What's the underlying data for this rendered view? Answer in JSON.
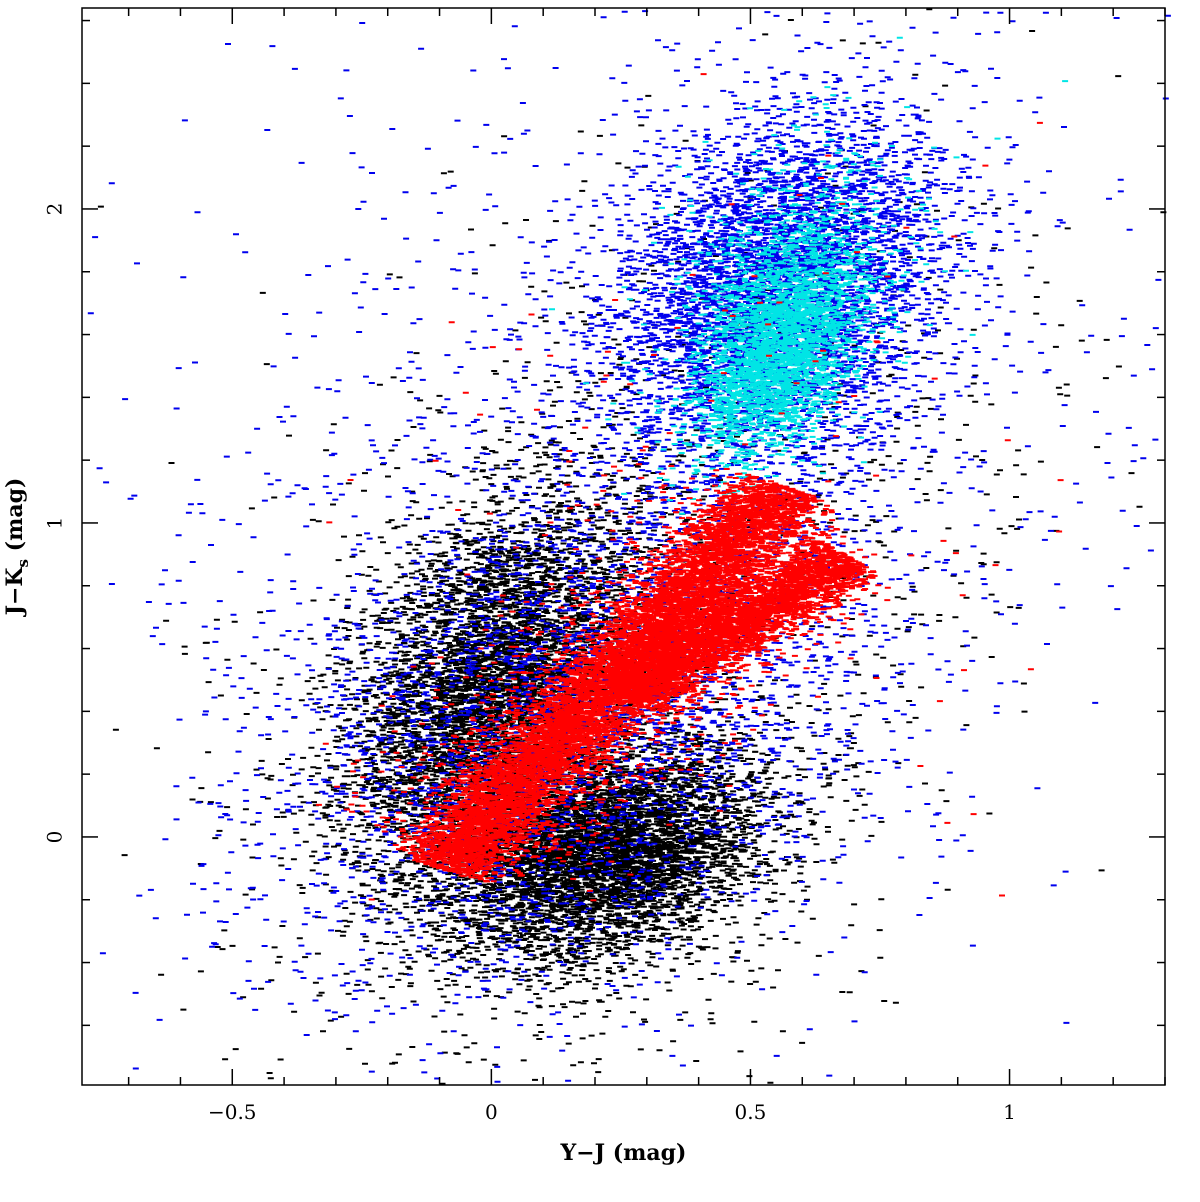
{
  "chart_data": {
    "type": "scatter",
    "title": "",
    "xlabel": "Y−J (mag)",
    "ylabel_main": "J−K",
    "ylabel_sub": "s",
    "ylabel_unit": " (mag)",
    "xlim": [
      -0.79,
      1.3
    ],
    "ylim": [
      -0.79,
      2.64
    ],
    "x_ticks": [
      -0.5,
      0,
      0.5,
      1
    ],
    "x_tick_labels": [
      "−0.5",
      "0",
      "0.5",
      "1"
    ],
    "y_ticks": [
      0,
      1,
      2
    ],
    "y_tick_labels": [
      "0",
      "1",
      "2"
    ],
    "grid": false,
    "legend": "none",
    "series": [
      {
        "color": "#000000",
        "clusters": [
          {
            "cx": 0.0,
            "cy": 0.45,
            "sx": 0.14,
            "sy": 0.3,
            "rho": 0.35,
            "n": 5500
          },
          {
            "cx": 0.22,
            "cy": -0.05,
            "sx": 0.15,
            "sy": 0.17,
            "rho": 0.3,
            "n": 5000
          },
          {
            "cx": 0.2,
            "cy": 0.45,
            "sx": 0.32,
            "sy": 0.62,
            "rho": 0.3,
            "n": 1400
          },
          {
            "cx": 0.45,
            "cy": 1.2,
            "sx": 0.35,
            "sy": 0.6,
            "rho": 0.2,
            "n": 500
          }
        ]
      },
      {
        "color": "#0000ee",
        "clusters": [
          {
            "cx": 0.55,
            "cy": 1.75,
            "sx": 0.16,
            "sy": 0.28,
            "rho": 0.3,
            "n": 5000
          },
          {
            "cx": 0.15,
            "cy": 0.35,
            "sx": 0.28,
            "sy": 0.4,
            "rho": 0.35,
            "n": 3000
          },
          {
            "cx": 0.3,
            "cy": 1.1,
            "sx": 0.45,
            "sy": 0.75,
            "rho": 0.25,
            "n": 1800
          }
        ]
      },
      {
        "color": "#00e5e5",
        "clusters": [
          {
            "cx": 0.55,
            "cy": 1.55,
            "sx": 0.08,
            "sy": 0.18,
            "rho": 0.45,
            "n": 2600
          },
          {
            "cx": 0.58,
            "cy": 1.8,
            "sx": 0.12,
            "sy": 0.22,
            "rho": 0.3,
            "n": 700
          }
        ]
      },
      {
        "color": "#ff0000",
        "bands": [
          {
            "x0": -0.1,
            "y0": -0.1,
            "x1": 0.56,
            "y1": 1.12,
            "width": 0.05,
            "n": 7000
          },
          {
            "x0": 0.25,
            "y0": 0.45,
            "x1": 0.68,
            "y1": 0.9,
            "width": 0.045,
            "n": 3500
          },
          {
            "x0": -0.08,
            "y0": -0.05,
            "x1": 0.55,
            "y1": 1.05,
            "width": 0.13,
            "n": 1400
          }
        ],
        "clusters": [
          {
            "cx": 0.5,
            "cy": 1.1,
            "sx": 0.35,
            "sy": 0.6,
            "rho": 0.2,
            "n": 120
          }
        ]
      }
    ]
  }
}
